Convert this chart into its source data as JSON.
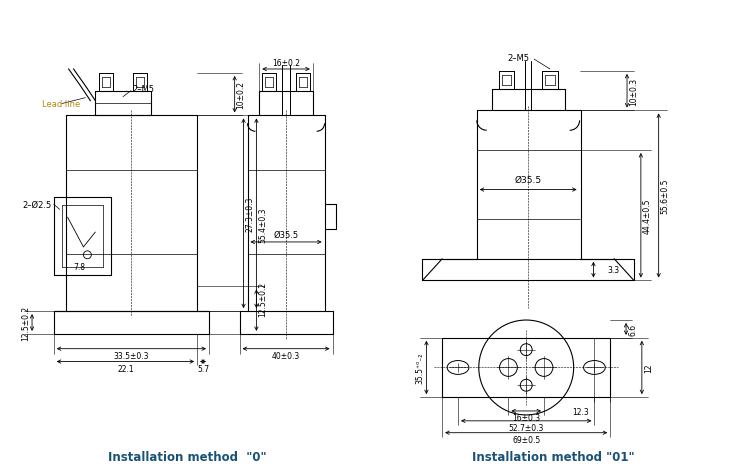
{
  "bg_color": "#ffffff",
  "line_color": "#000000",
  "dim_color": "#000000",
  "label_color": "#b8860b",
  "title_color": "#1a5276",
  "title_left": "Installation method  \"0\"",
  "title_right": "Installation method \"01\"",
  "m5_label_left": "2–M5",
  "m5_label_right": "2–M5",
  "lead_label": "Lead line",
  "hole_label": "2–Ø2.5",
  "dim_10_02": "10±0.2",
  "dim_16_02": "16±0.2",
  "dim_273_03": "27.3±0.3",
  "dim_554_03": "55.4±0.3",
  "dim_125_02_a": "12.5±0.2",
  "dim_125_02_b": "12.5±0.2",
  "dim_335_03": "33.5±0.3",
  "dim_221": "22.1",
  "dim_57": "5.7",
  "dim_78": "7.8",
  "dim_dia355_left": "Ø35.5",
  "dim_40_03": "40±0.3",
  "dim_10_03": "10±0.3",
  "dim_dia355_right": "Ø35.5",
  "dim_444_05": "44.4±0.5",
  "dim_556_05": "55.6±0.5",
  "dim_33": "3.3",
  "dim_355_bot": "35.5⁺⁰₋₂",
  "dim_16_03": "16±0.3",
  "dim_527_03": "52.7±0.3",
  "dim_69_05": "69±0.5",
  "dim_66": "6.6",
  "dim_12": "12",
  "dim_123": "12.3"
}
